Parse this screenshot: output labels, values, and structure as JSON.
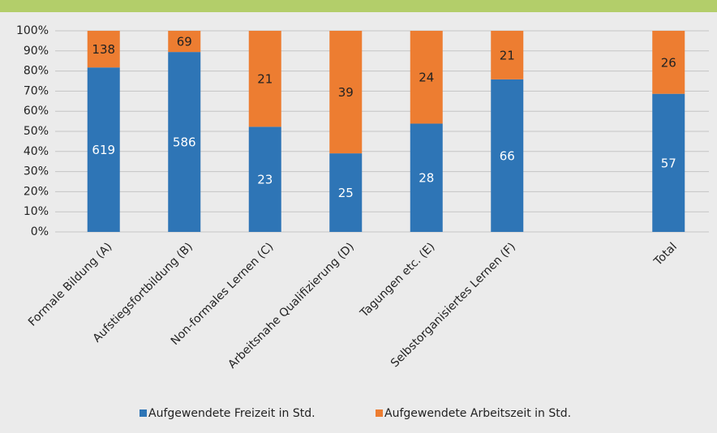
{
  "chart_data": {
    "type": "bar",
    "stacking": "percent",
    "categories": [
      "Formale Bildung (A)",
      "Aufstiegsfortbildung (B)",
      "Non-formales Lernen (C)",
      "Arbeitsnahe Qualifizierung (D)",
      "Tagungen etc. (E)",
      "Selbstorganisiertes Lernen (F)",
      null,
      "Total"
    ],
    "series": [
      {
        "name": "Aufgewendete Freizeit in Std.",
        "color": "#2e75b6",
        "values": [
          619,
          586,
          23,
          25,
          28,
          66,
          null,
          57
        ]
      },
      {
        "name": "Aufgewendete Arbeitszeit in Std.",
        "color": "#ed7d31",
        "values": [
          138,
          69,
          21,
          39,
          24,
          21,
          null,
          26
        ]
      }
    ],
    "ylim": [
      0,
      100
    ],
    "yticks": [
      {
        "value": 0,
        "label": "0%"
      },
      {
        "value": 10,
        "label": "10%"
      },
      {
        "value": 20,
        "label": "20%"
      },
      {
        "value": 30,
        "label": "30%"
      },
      {
        "value": 40,
        "label": "40%"
      },
      {
        "value": 50,
        "label": "50%"
      },
      {
        "value": 60,
        "label": "60%"
      },
      {
        "value": 70,
        "label": "70%"
      },
      {
        "value": 80,
        "label": "80%"
      },
      {
        "value": 90,
        "label": "90%"
      },
      {
        "value": 100,
        "label": "100%"
      }
    ],
    "grid": true,
    "legend": "bottom"
  }
}
